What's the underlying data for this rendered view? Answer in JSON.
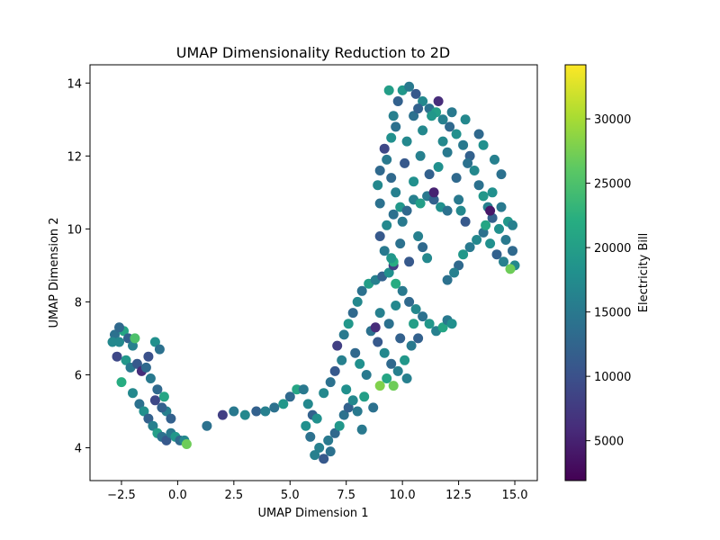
{
  "chart_data": {
    "type": "scatter",
    "title": "UMAP Dimensionality Reduction to 2D",
    "xlabel": "UMAP Dimension 1",
    "ylabel": "UMAP Dimension 2",
    "xlim": [
      -3.9,
      16.0
    ],
    "ylim": [
      3.1,
      14.5
    ],
    "xticks": [
      -2.5,
      0.0,
      2.5,
      5.0,
      7.5,
      10.0,
      12.5,
      15.0
    ],
    "xtick_labels": [
      "−2.5",
      "0.0",
      "2.5",
      "5.0",
      "7.5",
      "10.0",
      "12.5",
      "15.0"
    ],
    "yticks": [
      4,
      6,
      8,
      10,
      12,
      14
    ],
    "ytick_labels": [
      "4",
      "6",
      "8",
      "10",
      "12",
      "14"
    ],
    "grid": false,
    "colorbar": {
      "label": "Electricity Bill",
      "colormap": "viridis",
      "range": [
        1900,
        34200
      ],
      "ticks": [
        5000,
        10000,
        15000,
        20000,
        25000,
        30000
      ],
      "tick_labels": [
        "5000",
        "10000",
        "15000",
        "20000",
        "25000",
        "30000"
      ]
    },
    "points": [
      [
        -2.8,
        7.1,
        14000
      ],
      [
        -2.6,
        6.9,
        17000
      ],
      [
        -2.4,
        7.2,
        21000
      ],
      [
        -2.2,
        7.0,
        12000
      ],
      [
        -2.0,
        6.8,
        16000
      ],
      [
        -2.7,
        6.5,
        9000
      ],
      [
        -2.3,
        6.4,
        19000
      ],
      [
        -2.1,
        6.2,
        15000
      ],
      [
        -1.8,
        6.3,
        11000
      ],
      [
        -1.6,
        6.1,
        6000
      ],
      [
        -1.4,
        6.2,
        13000
      ],
      [
        -2.5,
        5.8,
        22000
      ],
      [
        -2.0,
        5.5,
        17000
      ],
      [
        -1.7,
        5.2,
        14000
      ],
      [
        -1.5,
        5.0,
        18000
      ],
      [
        -1.3,
        4.8,
        12000
      ],
      [
        -1.1,
        4.6,
        16000
      ],
      [
        -0.9,
        4.4,
        20000
      ],
      [
        -0.7,
        4.3,
        14000
      ],
      [
        -0.5,
        4.2,
        11000
      ],
      [
        -0.3,
        4.4,
        15000
      ],
      [
        -0.1,
        4.3,
        19000
      ],
      [
        0.1,
        4.2,
        13000
      ],
      [
        0.3,
        4.2,
        17000
      ],
      [
        -0.5,
        5.0,
        16000
      ],
      [
        -0.3,
        4.8,
        12000
      ],
      [
        -1.0,
        6.9,
        18000
      ],
      [
        -0.8,
        6.7,
        14000
      ],
      [
        -1.3,
        6.5,
        10000
      ],
      [
        -1.2,
        5.9,
        15000
      ],
      [
        -0.9,
        5.6,
        13000
      ],
      [
        -0.6,
        5.4,
        21000
      ],
      [
        -1.9,
        7.0,
        25000
      ],
      [
        -2.9,
        6.9,
        17000
      ],
      [
        -2.6,
        7.3,
        13000
      ],
      [
        -0.7,
        5.1,
        12000
      ],
      [
        0.4,
        4.1,
        27000
      ],
      [
        -1.0,
        5.3,
        9000
      ],
      [
        1.3,
        4.6,
        14000
      ],
      [
        2.0,
        4.9,
        8000
      ],
      [
        2.5,
        5.0,
        15000
      ],
      [
        3.0,
        4.9,
        17000
      ],
      [
        3.5,
        5.0,
        12000
      ],
      [
        3.9,
        5.0,
        16000
      ],
      [
        4.3,
        5.1,
        14000
      ],
      [
        4.7,
        5.2,
        19000
      ],
      [
        5.0,
        5.4,
        13000
      ],
      [
        5.3,
        5.6,
        21000
      ],
      [
        5.6,
        5.6,
        15000
      ],
      [
        5.8,
        5.2,
        17000
      ],
      [
        6.0,
        4.9,
        12000
      ],
      [
        6.2,
        4.8,
        18000
      ],
      [
        5.9,
        4.3,
        14000
      ],
      [
        6.3,
        4.0,
        16000
      ],
      [
        6.5,
        3.7,
        11000
      ],
      [
        6.7,
        4.2,
        15000
      ],
      [
        7.0,
        4.4,
        13000
      ],
      [
        7.2,
        4.6,
        19000
      ],
      [
        7.4,
        4.9,
        14000
      ],
      [
        7.6,
        5.1,
        12000
      ],
      [
        7.8,
        5.3,
        17000
      ],
      [
        8.0,
        5.0,
        15000
      ],
      [
        8.3,
        5.4,
        20000
      ],
      [
        6.1,
        3.8,
        16000
      ],
      [
        6.8,
        3.9,
        14000
      ],
      [
        5.7,
        4.6,
        18000
      ],
      [
        6.5,
        5.5,
        17000
      ],
      [
        6.8,
        5.8,
        14000
      ],
      [
        7.0,
        6.1,
        11000
      ],
      [
        7.3,
        6.4,
        16000
      ],
      [
        7.1,
        6.8,
        8000
      ],
      [
        7.4,
        7.1,
        15000
      ],
      [
        7.6,
        7.4,
        19000
      ],
      [
        7.8,
        7.7,
        13000
      ],
      [
        8.0,
        8.0,
        17000
      ],
      [
        8.2,
        8.3,
        14000
      ],
      [
        8.5,
        8.5,
        20000
      ],
      [
        8.8,
        8.6,
        16000
      ],
      [
        9.1,
        8.7,
        12000
      ],
      [
        9.4,
        8.8,
        18000
      ],
      [
        9.7,
        8.5,
        22000
      ],
      [
        10.0,
        8.3,
        15000
      ],
      [
        10.3,
        8.0,
        13000
      ],
      [
        10.6,
        7.8,
        17000
      ],
      [
        10.9,
        7.6,
        14000
      ],
      [
        11.2,
        7.4,
        19000
      ],
      [
        11.5,
        7.2,
        16000
      ],
      [
        11.8,
        7.3,
        21000
      ],
      [
        12.0,
        7.5,
        15000
      ],
      [
        12.2,
        7.4,
        18000
      ],
      [
        8.6,
        7.2,
        14000
      ],
      [
        8.9,
        6.9,
        11000
      ],
      [
        9.2,
        6.6,
        17000
      ],
      [
        9.5,
        6.3,
        13000
      ],
      [
        9.8,
        6.1,
        16000
      ],
      [
        10.1,
        6.4,
        19000
      ],
      [
        10.4,
        6.8,
        15000
      ],
      [
        10.7,
        7.0,
        12000
      ],
      [
        9.3,
        5.9,
        21000
      ],
      [
        9.0,
        5.7,
        28000
      ],
      [
        9.6,
        5.7,
        27000
      ],
      [
        8.4,
        6.0,
        15000
      ],
      [
        8.1,
        6.3,
        18000
      ],
      [
        7.9,
        6.6,
        13000
      ],
      [
        9.0,
        7.7,
        16000
      ],
      [
        9.4,
        7.4,
        14000
      ],
      [
        9.7,
        7.9,
        17000
      ],
      [
        10.5,
        7.4,
        20000
      ],
      [
        8.8,
        7.3,
        6000
      ],
      [
        9.9,
        7.0,
        12000
      ],
      [
        10.2,
        5.9,
        16000
      ],
      [
        8.7,
        5.1,
        14000
      ],
      [
        8.2,
        4.5,
        15000
      ],
      [
        7.5,
        5.6,
        18000
      ],
      [
        9.6,
        9.0,
        8000
      ],
      [
        9.6,
        9.1,
        22000
      ],
      [
        9.2,
        9.4,
        15000
      ],
      [
        9.0,
        9.8,
        11000
      ],
      [
        9.3,
        10.1,
        17000
      ],
      [
        9.6,
        10.4,
        14000
      ],
      [
        9.9,
        10.6,
        19000
      ],
      [
        10.2,
        10.5,
        13000
      ],
      [
        10.5,
        10.8,
        16000
      ],
      [
        10.8,
        10.7,
        20000
      ],
      [
        11.1,
        10.9,
        15000
      ],
      [
        11.4,
        10.8,
        12000
      ],
      [
        11.7,
        10.6,
        18000
      ],
      [
        12.0,
        10.5,
        14000
      ],
      [
        11.1,
        9.2,
        17000
      ],
      [
        10.9,
        9.5,
        13000
      ],
      [
        10.7,
        9.8,
        16000
      ],
      [
        10.3,
        9.1,
        11000
      ],
      [
        9.0,
        10.7,
        14000
      ],
      [
        8.9,
        11.2,
        17000
      ],
      [
        9.0,
        11.6,
        13000
      ],
      [
        9.3,
        11.9,
        15000
      ],
      [
        9.2,
        12.2,
        9000
      ],
      [
        9.5,
        12.5,
        18000
      ],
      [
        9.7,
        12.8,
        14000
      ],
      [
        9.6,
        13.1,
        16000
      ],
      [
        9.8,
        13.5,
        12000
      ],
      [
        10.0,
        13.8,
        19000
      ],
      [
        10.3,
        13.9,
        15000
      ],
      [
        10.6,
        13.7,
        11000
      ],
      [
        10.9,
        13.5,
        17000
      ],
      [
        11.2,
        13.3,
        14000
      ],
      [
        11.5,
        13.2,
        20000
      ],
      [
        11.8,
        13.0,
        16000
      ],
      [
        12.1,
        12.8,
        13000
      ],
      [
        12.4,
        12.6,
        18000
      ],
      [
        12.7,
        12.3,
        15000
      ],
      [
        13.0,
        12.0,
        12000
      ],
      [
        13.2,
        11.6,
        17000
      ],
      [
        13.4,
        11.2,
        14000
      ],
      [
        13.6,
        10.9,
        19000
      ],
      [
        13.8,
        10.6,
        16000
      ],
      [
        14.0,
        10.3,
        12000
      ],
      [
        14.3,
        10.0,
        18000
      ],
      [
        14.6,
        9.7,
        15000
      ],
      [
        14.9,
        9.4,
        13000
      ],
      [
        15.0,
        9.0,
        17000
      ],
      [
        14.8,
        8.9,
        27000
      ],
      [
        14.5,
        9.1,
        16000
      ],
      [
        14.2,
        9.3,
        12000
      ],
      [
        13.9,
        9.6,
        18000
      ],
      [
        13.6,
        9.9,
        14000
      ],
      [
        13.3,
        9.7,
        17000
      ],
      [
        13.0,
        9.5,
        15000
      ],
      [
        12.7,
        9.3,
        19000
      ],
      [
        12.5,
        9.0,
        13000
      ],
      [
        12.3,
        8.8,
        16000
      ],
      [
        12.0,
        8.6,
        14000
      ],
      [
        12.8,
        10.2,
        11000
      ],
      [
        12.6,
        10.5,
        17000
      ],
      [
        12.5,
        10.8,
        15000
      ],
      [
        13.7,
        10.1,
        21000
      ],
      [
        14.0,
        11.0,
        18000
      ],
      [
        14.4,
        10.6,
        15000
      ],
      [
        14.7,
        10.2,
        19000
      ],
      [
        14.4,
        11.5,
        14000
      ],
      [
        14.1,
        11.9,
        16000
      ],
      [
        13.6,
        12.3,
        18000
      ],
      [
        13.4,
        12.6,
        13000
      ],
      [
        12.8,
        13.0,
        17000
      ],
      [
        12.2,
        13.2,
        15000
      ],
      [
        11.6,
        13.5,
        6000
      ],
      [
        11.3,
        13.1,
        19000
      ],
      [
        10.5,
        13.1,
        14000
      ],
      [
        10.2,
        12.4,
        17000
      ],
      [
        10.8,
        12.0,
        16000
      ],
      [
        11.2,
        11.5,
        12000
      ],
      [
        11.6,
        11.7,
        18000
      ],
      [
        12.0,
        12.1,
        15000
      ],
      [
        12.4,
        11.4,
        13000
      ],
      [
        11.8,
        12.4,
        17000
      ],
      [
        10.1,
        11.8,
        11000
      ],
      [
        10.5,
        11.3,
        18000
      ],
      [
        10.0,
        10.2,
        15000
      ],
      [
        9.9,
        9.6,
        14000
      ],
      [
        9.7,
        11.0,
        16000
      ],
      [
        9.5,
        11.4,
        13000
      ],
      [
        9.4,
        13.8,
        20000
      ],
      [
        10.7,
        13.3,
        12000
      ],
      [
        11.4,
        11.0,
        5000
      ],
      [
        12.9,
        11.8,
        14000
      ],
      [
        13.9,
        10.5,
        4000
      ],
      [
        14.9,
        10.1,
        16000
      ],
      [
        10.9,
        12.7,
        17000
      ],
      [
        9.5,
        9.2,
        19000
      ]
    ]
  }
}
